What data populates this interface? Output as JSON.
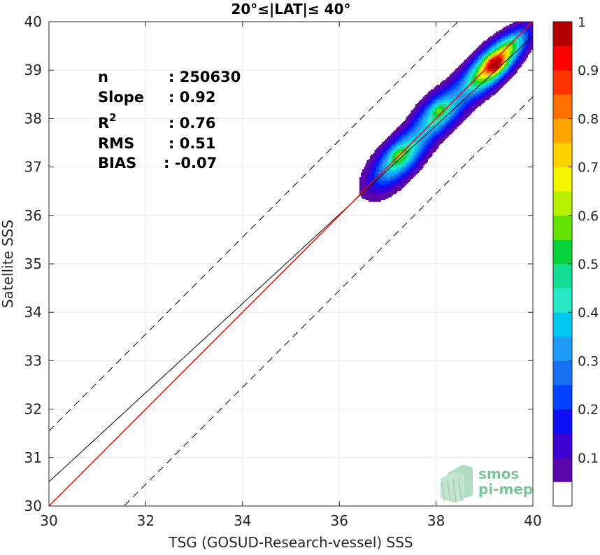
{
  "chart_data": {
    "type": "heatmap",
    "title": "20°≤|LAT|≤ 40°",
    "xlabel": "TSG (GOSUD-Research-vessel) SSS",
    "ylabel": "Satellite SSS",
    "xlim": [
      30,
      40
    ],
    "ylim": [
      30,
      40
    ],
    "xticks": [
      "30",
      "32",
      "34",
      "36",
      "38",
      "40"
    ],
    "yticks": [
      "30",
      "31",
      "32",
      "33",
      "34",
      "35",
      "36",
      "37",
      "38",
      "39",
      "40"
    ],
    "grid": true,
    "stats": [
      {
        "label": "n",
        "value": ": 250630"
      },
      {
        "label": "Slope",
        "value": ": 0.92"
      },
      {
        "label": "R",
        "sup": "2",
        "value": ": 0.76"
      },
      {
        "label": "RMS",
        "value": ": 0.51"
      },
      {
        "label": "BIAS",
        "value": ": -0.07"
      }
    ],
    "lines": {
      "identity": {
        "from": [
          30,
          30
        ],
        "to": [
          40,
          40
        ],
        "color": "#ff0000"
      },
      "regression": {
        "slope": 0.92,
        "intercept": 2.9,
        "color": "#000000"
      },
      "envelope_offset": 1.55
    },
    "density_peaks": [
      {
        "x": 39.2,
        "y": 39.1,
        "level": 1.0
      },
      {
        "x": 37.3,
        "y": 37.25,
        "level": 0.58
      },
      {
        "x": 38.0,
        "y": 38.15,
        "level": 0.55
      }
    ],
    "colorbar": {
      "levels": [
        0,
        0.05,
        0.1,
        0.15,
        0.2,
        0.25,
        0.3,
        0.35,
        0.4,
        0.45,
        0.5,
        0.55,
        0.6,
        0.65,
        0.7,
        0.75,
        0.8,
        0.85,
        0.9,
        0.95,
        1
      ],
      "colors": [
        "#ffffff",
        "#5a06a9",
        "#3c00d2",
        "#0f0ff5",
        "#0040ff",
        "#1470f0",
        "#1e9bf5",
        "#00c8f0",
        "#28e6c8",
        "#14dc91",
        "#05d23c",
        "#64e100",
        "#b4f000",
        "#f5f500",
        "#ffd200",
        "#ffa500",
        "#ff6e00",
        "#ff3200",
        "#ff0000",
        "#b40000"
      ],
      "ticks": [
        "0.1",
        "0.2",
        "0.3",
        "0.4",
        "0.5",
        "0.6",
        "0.7",
        "0.8",
        "0.9",
        "1"
      ]
    }
  },
  "logo": {
    "line1": "smos",
    "line2": "pi-mep"
  }
}
